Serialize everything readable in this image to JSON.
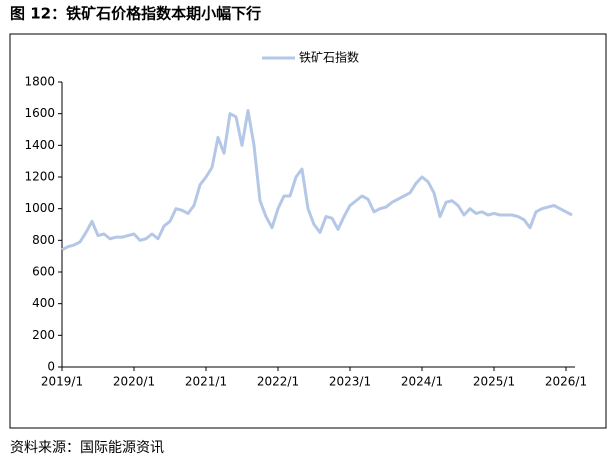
{
  "title": "图 12：铁矿石价格指数本期小幅下行",
  "source": "资料来源：国际能源资讯",
  "chart_data": {
    "type": "line",
    "x": [
      "2019/1",
      "2019/2",
      "2019/3",
      "2019/4",
      "2019/5",
      "2019/6",
      "2019/7",
      "2019/8",
      "2019/9",
      "2019/10",
      "2019/11",
      "2019/12",
      "2020/1",
      "2020/2",
      "2020/3",
      "2020/4",
      "2020/5",
      "2020/6",
      "2020/7",
      "2020/8",
      "2020/9",
      "2020/10",
      "2020/11",
      "2020/12",
      "2021/1",
      "2021/2",
      "2021/3",
      "2021/4",
      "2021/5",
      "2021/6",
      "2021/7",
      "2021/8",
      "2021/9",
      "2021/10",
      "2021/11",
      "2021/12",
      "2022/1",
      "2022/2",
      "2022/3",
      "2022/4",
      "2022/5",
      "2022/6",
      "2022/7",
      "2022/8",
      "2022/9",
      "2022/10",
      "2022/11",
      "2022/12",
      "2023/1",
      "2023/2",
      "2023/3",
      "2023/4",
      "2023/5",
      "2023/6",
      "2023/7",
      "2023/8",
      "2023/9",
      "2023/10",
      "2023/11",
      "2023/12",
      "2024/1",
      "2024/2",
      "2024/3",
      "2024/4",
      "2024/5",
      "2024/6",
      "2024/7",
      "2024/8",
      "2024/9",
      "2024/10",
      "2024/11",
      "2024/12",
      "2025/1",
      "2025/2",
      "2025/3",
      "2025/4",
      "2025/5",
      "2025/6",
      "2025/7",
      "2025/8",
      "2025/9",
      "2025/10",
      "2025/11",
      "2025/12",
      "2026/1",
      "2026/2"
    ],
    "series": [
      {
        "name": "铁矿石指数",
        "color": "#b4c7e7",
        "values": [
          740,
          760,
          770,
          790,
          850,
          920,
          830,
          840,
          810,
          820,
          820,
          830,
          840,
          800,
          810,
          840,
          810,
          890,
          920,
          1000,
          990,
          970,
          1020,
          1150,
          1200,
          1260,
          1450,
          1350,
          1600,
          1580,
          1400,
          1620,
          1400,
          1050,
          950,
          880,
          1000,
          1080,
          1080,
          1200,
          1250,
          1000,
          900,
          850,
          950,
          940,
          870,
          950,
          1020,
          1050,
          1080,
          1060,
          980,
          1000,
          1010,
          1040,
          1060,
          1080,
          1100,
          1160,
          1200,
          1170,
          1100,
          950,
          1040,
          1050,
          1020,
          960,
          1000,
          970,
          980,
          960,
          970,
          960,
          960,
          960,
          950,
          930,
          880,
          980,
          1000,
          1010,
          1020,
          1000,
          980,
          960
        ]
      }
    ],
    "xticks": [
      "2019/1",
      "2020/1",
      "2021/1",
      "2022/1",
      "2023/1",
      "2024/1",
      "2025/1",
      "2026/1"
    ],
    "ylim": [
      0,
      1800
    ],
    "yticks": [
      0,
      200,
      400,
      600,
      800,
      1000,
      1200,
      1400,
      1600,
      1800
    ],
    "legend": "top"
  }
}
